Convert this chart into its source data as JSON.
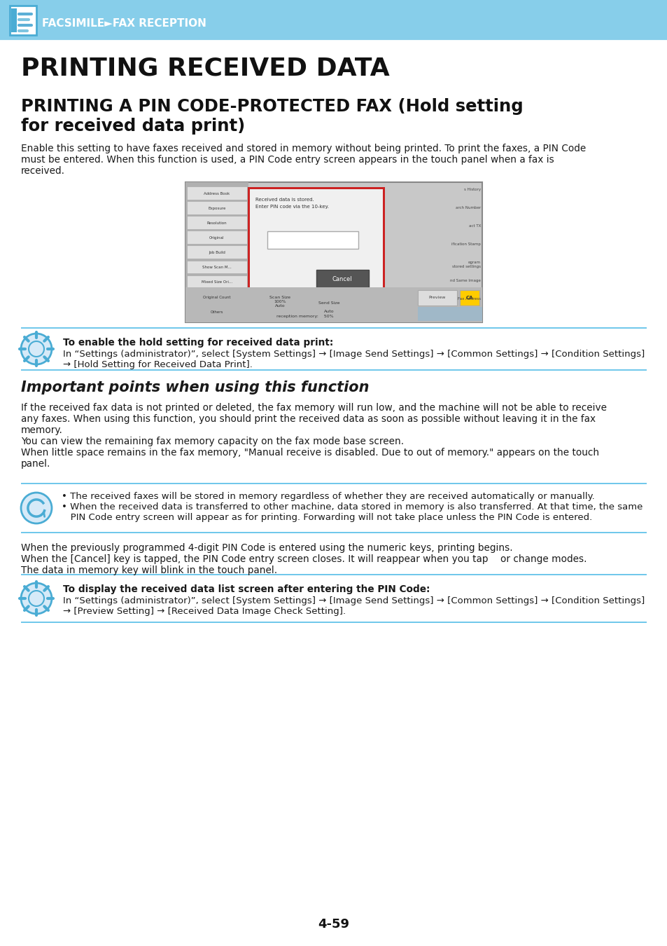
{
  "header_bg": "#87CEEA",
  "header_text": "FACSIMILE►FAX RECEPTION",
  "header_text_color": "#FFFFFF",
  "page_bg": "#FFFFFF",
  "title1": "PRINTING RECEIVED DATA",
  "title2_line1": "PRINTING A PIN CODE-PROTECTED FAX (Hold setting",
  "title2_line2": "for received data print)",
  "body_text1_line1": "Enable this setting to have faxes received and stored in memory without being printed. To print the faxes, a PIN Code",
  "body_text1_line2": "must be entered. When this function is used, a PIN Code entry screen appears in the touch panel when a fax is",
  "body_text1_line3": "received.",
  "note1_bold": "To enable the hold setting for received data print:",
  "note1_line1": "In “Settings (administrator)”, select [System Settings] → [Image Send Settings] → [Common Settings] → [Condition Settings]",
  "note1_line2": "→ [Hold Setting for Received Data Print].",
  "section_title": "Important points when using this function",
  "sec_line1": "If the received fax data is not printed or deleted, the fax memory will run low, and the machine will not be able to receive",
  "sec_line2": "any faxes. When using this function, you should print the received data as soon as possible without leaving it in the fax",
  "sec_line3": "memory.",
  "sec_line4": "You can view the remaining fax memory capacity on the fax mode base screen.",
  "sec_line5": "When little space remains in the fax memory, \"Manual receive is disabled. Due to out of memory.\" appears on the touch",
  "sec_line6": "panel.",
  "bullet1": "• The received faxes will be stored in memory regardless of whether they are received automatically or manually.",
  "bullet2a": "• When the received data is transferred to other machine, data stored in memory is also transferred. At that time, the same",
  "bullet2b": "   PIN Code entry screen will appear as for printing. Forwarding will not take place unless the PIN Code is entered.",
  "after1": "When the previously programmed 4-digit PIN Code is entered using the numeric keys, printing begins.",
  "after2": "When the [Cancel] key is tapped, the PIN Code entry screen closes. It will reappear when you tap    or change modes.",
  "after3": "The data in memory key will blink in the touch panel.",
  "note2_bold": "To display the received data list screen after entering the PIN Code:",
  "note2_line1": "In “Settings (administrator)”, select [System Settings] → [Image Send Settings] → [Common Settings] → [Condition Settings]",
  "note2_line2": "→ [Preview Setting] → [Received Data Image Check Setting].",
  "page_number": "4-59",
  "accent_color": "#4DB8E8",
  "separator_color": "#55BDE8",
  "text_color": "#1a1a1a",
  "icon_color": "#4AACD4"
}
